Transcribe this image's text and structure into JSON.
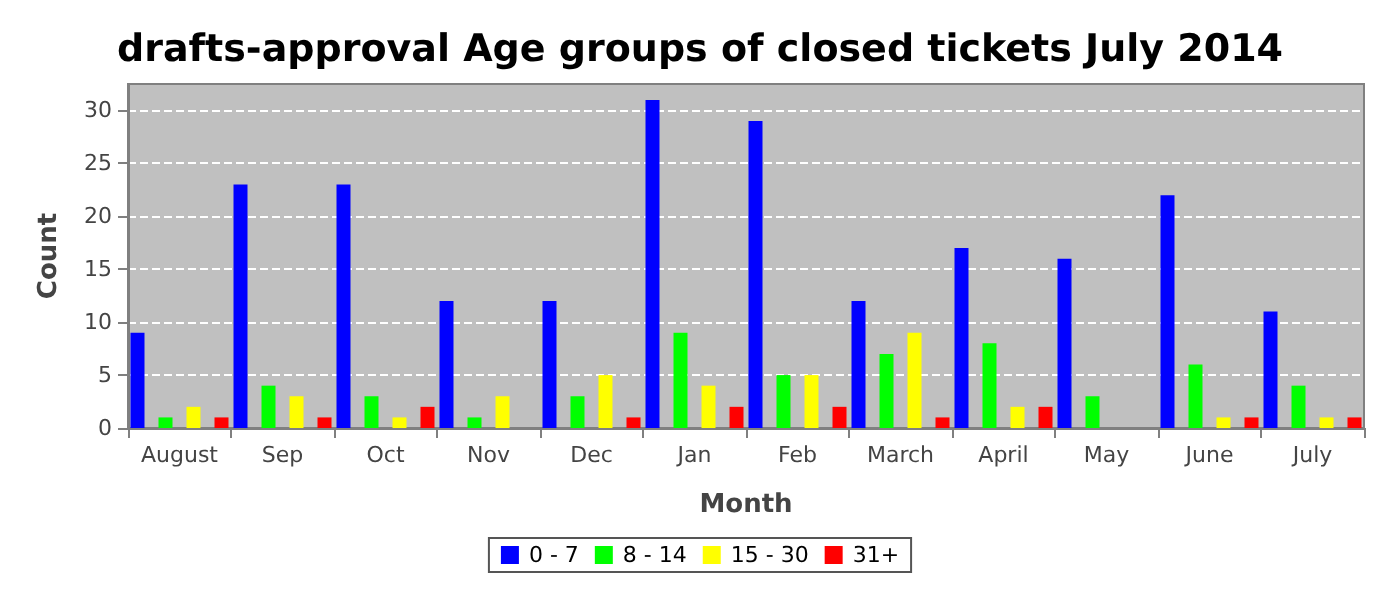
{
  "chart_data": {
    "type": "bar",
    "title": "drafts-approval Age groups of closed tickets July 2014",
    "xlabel": "Month",
    "ylabel": "Count",
    "categories": [
      "August",
      "Sep",
      "Oct",
      "Nov",
      "Dec",
      "Jan",
      "Feb",
      "March",
      "April",
      "May",
      "June",
      "July"
    ],
    "series": [
      {
        "name": "0 - 7",
        "color": "#0000ff",
        "values": [
          9,
          23,
          23,
          12,
          12,
          31,
          29,
          12,
          17,
          16,
          22,
          11
        ]
      },
      {
        "name": "8 - 14",
        "color": "#00ff00",
        "values": [
          1,
          4,
          3,
          1,
          3,
          9,
          5,
          7,
          8,
          3,
          6,
          4
        ]
      },
      {
        "name": "15 - 30",
        "color": "#ffff00",
        "values": [
          2,
          3,
          1,
          3,
          5,
          4,
          5,
          9,
          2,
          0,
          1,
          1
        ]
      },
      {
        "name": "31+",
        "color": "#ff0000",
        "values": [
          1,
          1,
          2,
          0,
          1,
          2,
          2,
          1,
          2,
          0,
          1,
          1
        ]
      }
    ],
    "ylim": [
      0,
      32.5
    ],
    "yticks": [
      0,
      5,
      10,
      15,
      20,
      25,
      30
    ],
    "grid": "y",
    "legend": "bottom"
  }
}
